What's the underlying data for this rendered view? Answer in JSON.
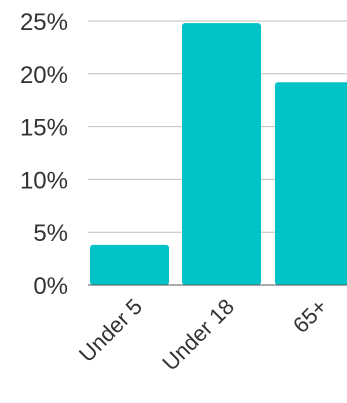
{
  "chart_data": {
    "type": "bar",
    "categories": [
      "Under 5",
      "Under 18",
      "65+"
    ],
    "values": [
      3.8,
      24.8,
      19.2
    ],
    "ylim": [
      0,
      25
    ],
    "yticks": [
      0,
      5,
      10,
      15,
      20,
      25
    ],
    "ytick_labels": [
      "0%",
      "5%",
      "10%",
      "15%",
      "20%",
      "25%"
    ],
    "grid": true,
    "legend": "none",
    "bar_color": "#00c2c7"
  }
}
